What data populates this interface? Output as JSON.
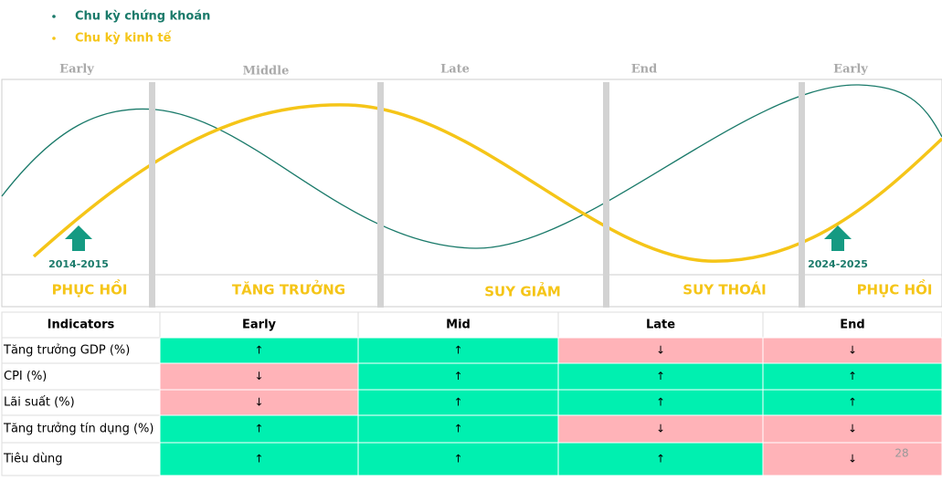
{
  "legend": {
    "items": [
      {
        "label": "Chu kỳ chứng khoán",
        "color": "#1a7a6a"
      },
      {
        "label": "Chu kỳ kinh tế",
        "color": "#f5c518"
      }
    ]
  },
  "stages": [
    "Early",
    "Middle",
    "Late",
    "End",
    "Early"
  ],
  "phases": [
    "PHỤC HỒI",
    "TĂNG TRƯỞNG",
    "SUY GIẢM",
    "SUY THOÁI",
    "PHỤC HỒI"
  ],
  "markers": [
    "2014-2015",
    "2024-2025"
  ],
  "table": {
    "headers": [
      "Indicators",
      "Early",
      "Mid",
      "Late",
      "End"
    ],
    "cell_colors": {
      "↑": "#00f0b0",
      "↓": "#ffb3b8"
    },
    "rows": [
      {
        "name": "Tăng trưởng GDP (%)",
        "values": [
          "↑",
          "↑",
          "↓",
          "↓"
        ]
      },
      {
        "name": "CPI (%)",
        "values": [
          "↓",
          "↑",
          "↑",
          "↑"
        ]
      },
      {
        "name": "Lãi suất (%)",
        "values": [
          "↓",
          "↑",
          "↑",
          "↑"
        ]
      },
      {
        "name": "Tăng trưởng tín dụng (%)",
        "values": [
          "↑",
          "↑",
          "↓",
          "↓"
        ]
      },
      {
        "name": "Tiêu dùng",
        "values": [
          "↑",
          "↑",
          "↑",
          "↓"
        ]
      }
    ]
  },
  "page_number": "28"
}
